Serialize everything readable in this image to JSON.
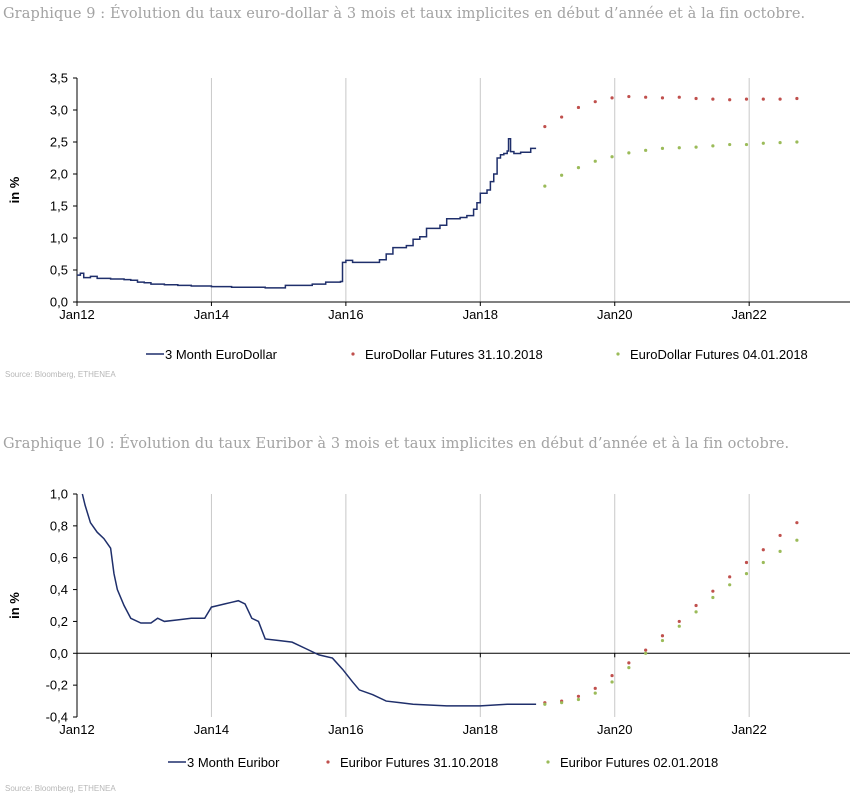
{
  "charts": [
    {
      "caption": "Graphique 9 : Évolution du taux euro-dollar à 3 mois et taux implicites en début d’année et à la fin octobre.",
      "source": "Source: Bloomberg, ETHENEA"
    },
    {
      "caption": "Graphique 10 : Évolution du taux Euribor à 3 mois et taux implicites en début d’année et à la fin octobre.",
      "source": "Source: Bloomberg, ETHENEA"
    }
  ],
  "colors": {
    "line": "#1f2f6b",
    "futures_recent": "#c0504d",
    "futures_early": "#9bbb59",
    "grid": "#c8c8c8"
  },
  "chart_data": [
    {
      "type": "line",
      "ylabel": "in %",
      "ylim": [
        0,
        3.5
      ],
      "xlim": [
        2012.0,
        2023.5
      ],
      "yticks": [
        "0,0",
        "0,5",
        "1,0",
        "1,5",
        "2,0",
        "2,5",
        "3,0",
        "3,5"
      ],
      "ytick_values": [
        0,
        0.5,
        1.0,
        1.5,
        2.0,
        2.5,
        3.0,
        3.5
      ],
      "xticks": [
        "Jan12",
        "Jan14",
        "Jan16",
        "Jan18",
        "Jan20",
        "Jan22"
      ],
      "xtick_values": [
        2012,
        2014,
        2016,
        2018,
        2020,
        2022
      ],
      "grid": "vertical",
      "legend_position": "bottom",
      "series": [
        {
          "name": "3 Month EuroDollar",
          "style": "step-line",
          "points": [
            [
              2012.0,
              0.42
            ],
            [
              2012.05,
              0.45
            ],
            [
              2012.1,
              0.38
            ],
            [
              2012.2,
              0.4
            ],
            [
              2012.3,
              0.37
            ],
            [
              2012.5,
              0.36
            ],
            [
              2012.7,
              0.35
            ],
            [
              2012.8,
              0.34
            ],
            [
              2012.9,
              0.31
            ],
            [
              2013.0,
              0.3
            ],
            [
              2013.1,
              0.28
            ],
            [
              2013.3,
              0.27
            ],
            [
              2013.5,
              0.26
            ],
            [
              2013.7,
              0.25
            ],
            [
              2014.0,
              0.24
            ],
            [
              2014.3,
              0.23
            ],
            [
              2014.5,
              0.23
            ],
            [
              2014.8,
              0.22
            ],
            [
              2015.0,
              0.22
            ],
            [
              2015.1,
              0.26
            ],
            [
              2015.5,
              0.28
            ],
            [
              2015.7,
              0.31
            ],
            [
              2015.92,
              0.32
            ],
            [
              2015.95,
              0.62
            ],
            [
              2016.0,
              0.65
            ],
            [
              2016.1,
              0.62
            ],
            [
              2016.3,
              0.62
            ],
            [
              2016.5,
              0.66
            ],
            [
              2016.6,
              0.75
            ],
            [
              2016.7,
              0.85
            ],
            [
              2016.9,
              0.88
            ],
            [
              2017.0,
              0.98
            ],
            [
              2017.1,
              1.02
            ],
            [
              2017.2,
              1.15
            ],
            [
              2017.4,
              1.2
            ],
            [
              2017.5,
              1.3
            ],
            [
              2017.7,
              1.32
            ],
            [
              2017.8,
              1.35
            ],
            [
              2017.9,
              1.45
            ],
            [
              2017.95,
              1.55
            ],
            [
              2018.0,
              1.7
            ],
            [
              2018.1,
              1.75
            ],
            [
              2018.15,
              1.88
            ],
            [
              2018.2,
              2.0
            ],
            [
              2018.25,
              2.25
            ],
            [
              2018.3,
              2.3
            ],
            [
              2018.35,
              2.32
            ],
            [
              2018.4,
              2.36
            ],
            [
              2018.42,
              2.55
            ],
            [
              2018.45,
              2.35
            ],
            [
              2018.5,
              2.32
            ],
            [
              2018.6,
              2.34
            ],
            [
              2018.7,
              2.34
            ],
            [
              2018.75,
              2.4
            ],
            [
              2018.83,
              2.4
            ]
          ]
        },
        {
          "name": "EuroDollar Futures 31.10.2018",
          "style": "dots",
          "points": [
            [
              2018.96,
              2.74
            ],
            [
              2019.21,
              2.89
            ],
            [
              2019.46,
              3.04
            ],
            [
              2019.71,
              3.13
            ],
            [
              2019.96,
              3.19
            ],
            [
              2020.21,
              3.21
            ],
            [
              2020.46,
              3.2
            ],
            [
              2020.71,
              3.19
            ],
            [
              2020.96,
              3.2
            ],
            [
              2021.21,
              3.18
            ],
            [
              2021.46,
              3.17
            ],
            [
              2021.71,
              3.16
            ],
            [
              2021.96,
              3.17
            ],
            [
              2022.21,
              3.17
            ],
            [
              2022.46,
              3.17
            ],
            [
              2022.71,
              3.18
            ]
          ]
        },
        {
          "name": "EuroDollar Futures 04.01.2018",
          "style": "dots",
          "points": [
            [
              2018.96,
              1.81
            ],
            [
              2019.21,
              1.98
            ],
            [
              2019.46,
              2.1
            ],
            [
              2019.71,
              2.2
            ],
            [
              2019.96,
              2.27
            ],
            [
              2020.21,
              2.33
            ],
            [
              2020.46,
              2.37
            ],
            [
              2020.71,
              2.4
            ],
            [
              2020.96,
              2.41
            ],
            [
              2021.21,
              2.42
            ],
            [
              2021.46,
              2.44
            ],
            [
              2021.71,
              2.46
            ],
            [
              2021.96,
              2.46
            ],
            [
              2022.21,
              2.48
            ],
            [
              2022.46,
              2.49
            ],
            [
              2022.71,
              2.5
            ]
          ]
        }
      ]
    },
    {
      "type": "line",
      "ylabel": "in %",
      "ylim": [
        -0.4,
        1.0
      ],
      "xlim": [
        2012.0,
        2023.5
      ],
      "yticks": [
        "-0,4",
        "-0,2",
        "0,0",
        "0,2",
        "0,4",
        "0,6",
        "0,8",
        "1,0"
      ],
      "ytick_values": [
        -0.4,
        -0.2,
        0,
        0.2,
        0.4,
        0.6,
        0.8,
        1.0
      ],
      "xticks": [
        "Jan12",
        "Jan14",
        "Jan16",
        "Jan18",
        "Jan20",
        "Jan22"
      ],
      "xtick_values": [
        2012,
        2014,
        2016,
        2018,
        2020,
        2022
      ],
      "grid": "vertical",
      "legend_position": "bottom",
      "series": [
        {
          "name": "3 Month Euribor",
          "style": "line",
          "points": [
            [
              2012.08,
              1.0
            ],
            [
              2012.12,
              0.93
            ],
            [
              2012.2,
              0.82
            ],
            [
              2012.3,
              0.76
            ],
            [
              2012.4,
              0.72
            ],
            [
              2012.5,
              0.66
            ],
            [
              2012.55,
              0.5
            ],
            [
              2012.6,
              0.4
            ],
            [
              2012.7,
              0.3
            ],
            [
              2012.8,
              0.22
            ],
            [
              2012.95,
              0.19
            ],
            [
              2013.1,
              0.19
            ],
            [
              2013.2,
              0.22
            ],
            [
              2013.3,
              0.2
            ],
            [
              2013.5,
              0.21
            ],
            [
              2013.7,
              0.22
            ],
            [
              2013.9,
              0.22
            ],
            [
              2014.0,
              0.29
            ],
            [
              2014.1,
              0.3
            ],
            [
              2014.2,
              0.31
            ],
            [
              2014.3,
              0.32
            ],
            [
              2014.4,
              0.33
            ],
            [
              2014.5,
              0.31
            ],
            [
              2014.6,
              0.22
            ],
            [
              2014.7,
              0.2
            ],
            [
              2014.8,
              0.09
            ],
            [
              2015.0,
              0.08
            ],
            [
              2015.2,
              0.07
            ],
            [
              2015.4,
              0.03
            ],
            [
              2015.6,
              -0.01
            ],
            [
              2015.8,
              -0.03
            ],
            [
              2015.95,
              -0.1
            ],
            [
              2016.1,
              -0.18
            ],
            [
              2016.2,
              -0.23
            ],
            [
              2016.4,
              -0.26
            ],
            [
              2016.6,
              -0.3
            ],
            [
              2016.8,
              -0.31
            ],
            [
              2017.0,
              -0.32
            ],
            [
              2017.5,
              -0.33
            ],
            [
              2018.0,
              -0.33
            ],
            [
              2018.4,
              -0.32
            ],
            [
              2018.83,
              -0.32
            ]
          ]
        },
        {
          "name": "Euribor Futures 31.10.2018",
          "style": "dots",
          "points": [
            [
              2018.96,
              -0.31
            ],
            [
              2019.21,
              -0.3
            ],
            [
              2019.46,
              -0.27
            ],
            [
              2019.71,
              -0.22
            ],
            [
              2019.96,
              -0.14
            ],
            [
              2020.21,
              -0.06
            ],
            [
              2020.46,
              0.02
            ],
            [
              2020.71,
              0.11
            ],
            [
              2020.96,
              0.2
            ],
            [
              2021.21,
              0.3
            ],
            [
              2021.46,
              0.39
            ],
            [
              2021.71,
              0.48
            ],
            [
              2021.96,
              0.57
            ],
            [
              2022.21,
              0.65
            ],
            [
              2022.46,
              0.74
            ],
            [
              2022.71,
              0.82
            ]
          ]
        },
        {
          "name": "Euribor Futures 02.01.2018",
          "style": "dots",
          "points": [
            [
              2018.96,
              -0.32
            ],
            [
              2019.21,
              -0.31
            ],
            [
              2019.46,
              -0.29
            ],
            [
              2019.71,
              -0.25
            ],
            [
              2019.96,
              -0.18
            ],
            [
              2020.21,
              -0.09
            ],
            [
              2020.46,
              0.0
            ],
            [
              2020.71,
              0.08
            ],
            [
              2020.96,
              0.17
            ],
            [
              2021.21,
              0.26
            ],
            [
              2021.46,
              0.35
            ],
            [
              2021.71,
              0.43
            ],
            [
              2021.96,
              0.5
            ],
            [
              2022.21,
              0.57
            ],
            [
              2022.46,
              0.64
            ],
            [
              2022.71,
              0.71
            ]
          ]
        }
      ]
    }
  ]
}
